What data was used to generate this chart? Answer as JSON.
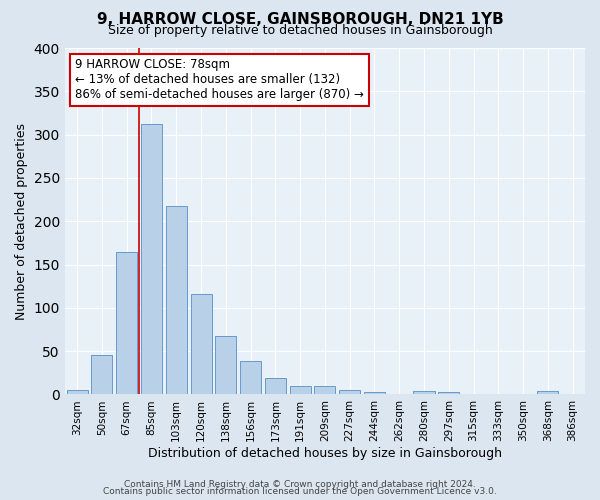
{
  "title": "9, HARROW CLOSE, GAINSBOROUGH, DN21 1YB",
  "subtitle": "Size of property relative to detached houses in Gainsborough",
  "xlabel": "Distribution of detached houses by size in Gainsborough",
  "ylabel": "Number of detached properties",
  "categories": [
    "32sqm",
    "50sqm",
    "67sqm",
    "85sqm",
    "103sqm",
    "120sqm",
    "138sqm",
    "156sqm",
    "173sqm",
    "191sqm",
    "209sqm",
    "227sqm",
    "244sqm",
    "262sqm",
    "280sqm",
    "297sqm",
    "315sqm",
    "333sqm",
    "350sqm",
    "368sqm",
    "386sqm"
  ],
  "values": [
    5,
    46,
    165,
    312,
    218,
    116,
    67,
    39,
    19,
    10,
    10,
    5,
    3,
    0,
    4,
    3,
    0,
    0,
    0,
    4,
    0
  ],
  "bar_color": "#b8d0e8",
  "bar_edge_color": "#6699cc",
  "vline_x_index": 2.5,
  "vline_color": "#cc0000",
  "annotation_text": "9 HARROW CLOSE: 78sqm\n← 13% of detached houses are smaller (132)\n86% of semi-detached houses are larger (870) →",
  "annotation_box_color": "#ffffff",
  "annotation_box_edge_color": "#cc0000",
  "ylim": [
    0,
    400
  ],
  "yticks": [
    0,
    50,
    100,
    150,
    200,
    250,
    300,
    350,
    400
  ],
  "background_color": "#dce6f0",
  "plot_background": "#e8f0f8",
  "grid_color": "#ffffff",
  "footer_line1": "Contains HM Land Registry data © Crown copyright and database right 2024.",
  "footer_line2": "Contains public sector information licensed under the Open Government Licence v3.0.",
  "title_fontsize": 11,
  "subtitle_fontsize": 9,
  "xlabel_fontsize": 9,
  "ylabel_fontsize": 9,
  "tick_fontsize": 7.5,
  "annotation_fontsize": 8.5,
  "footer_fontsize": 6.5
}
